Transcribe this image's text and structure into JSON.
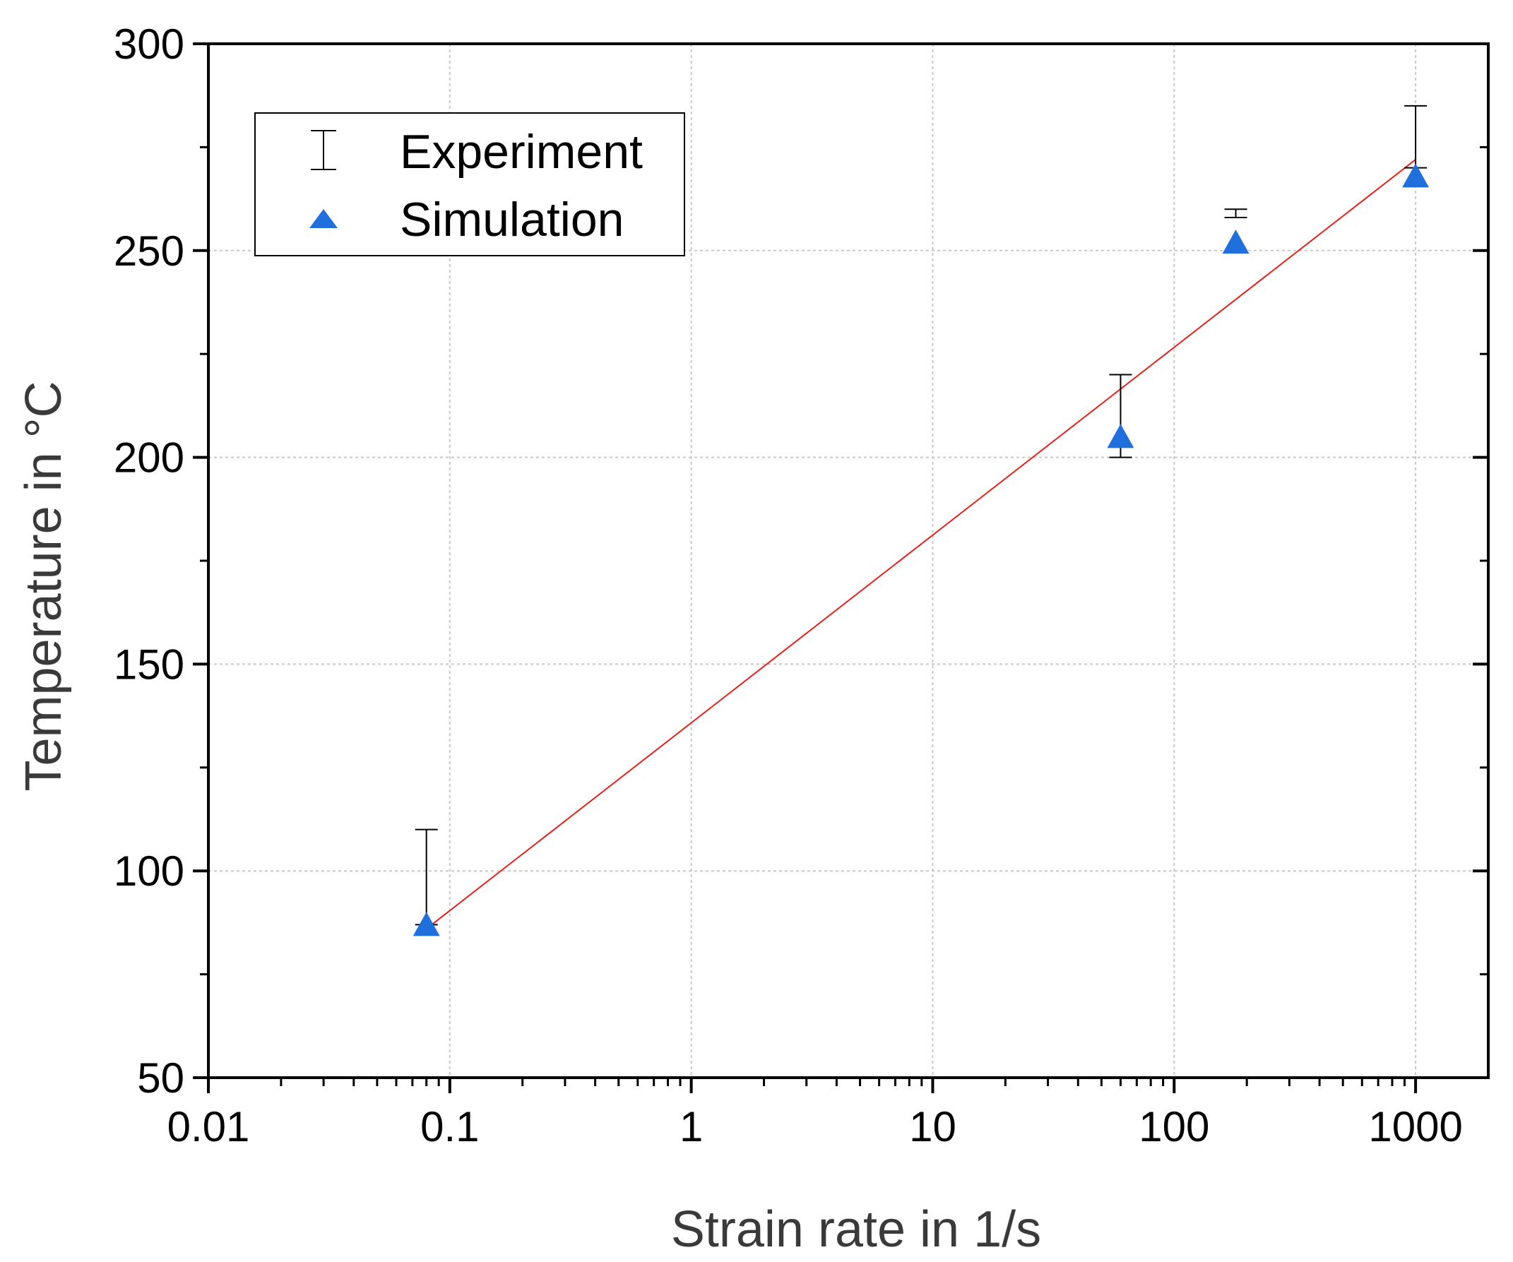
{
  "chart_data": {
    "type": "scatter",
    "title": "",
    "xlabel": "Strain rate in 1/s",
    "ylabel": "Temperature in °C",
    "xscale": "log",
    "xlim": [
      0.01,
      2000
    ],
    "ylim": [
      50,
      300
    ],
    "x_ticks": [
      {
        "value": 0.01,
        "label": "0.01"
      },
      {
        "value": 0.1,
        "label": "0.1"
      },
      {
        "value": 1,
        "label": "1"
      },
      {
        "value": 10,
        "label": "10"
      },
      {
        "value": 100,
        "label": "100"
      },
      {
        "value": 1000,
        "label": "1000"
      }
    ],
    "y_ticks": [
      {
        "value": 50,
        "label": "50"
      },
      {
        "value": 100,
        "label": "100"
      },
      {
        "value": 150,
        "label": "150"
      },
      {
        "value": 200,
        "label": "200"
      },
      {
        "value": 250,
        "label": "250"
      },
      {
        "value": 300,
        "label": "300"
      }
    ],
    "grid": true,
    "legend_position": "top-left",
    "legend": [
      {
        "name": "Experiment",
        "marker": "error-bar"
      },
      {
        "name": "Simulation",
        "marker": "triangle"
      }
    ],
    "series": [
      {
        "name": "Experiment",
        "kind": "error-bar",
        "points": [
          {
            "x": 0.08,
            "low": 87,
            "high": 110
          },
          {
            "x": 60,
            "low": 200,
            "high": 220
          },
          {
            "x": 180,
            "low": 258,
            "high": 260
          },
          {
            "x": 1000,
            "low": 270,
            "high": 285
          }
        ]
      },
      {
        "name": "Simulation",
        "kind": "marker",
        "x": [
          0.08,
          60,
          180,
          1000
        ],
        "y": [
          87,
          205,
          252,
          268
        ]
      },
      {
        "name": "Trend line",
        "kind": "line",
        "x": [
          0.08,
          1000
        ],
        "y": [
          86,
          272
        ]
      }
    ],
    "colors": {
      "simulation": "#1f6fdc",
      "trend": "#e8201a",
      "error_bar": "#000000",
      "grid": "#c8c8c8",
      "axis": "#000000"
    }
  }
}
